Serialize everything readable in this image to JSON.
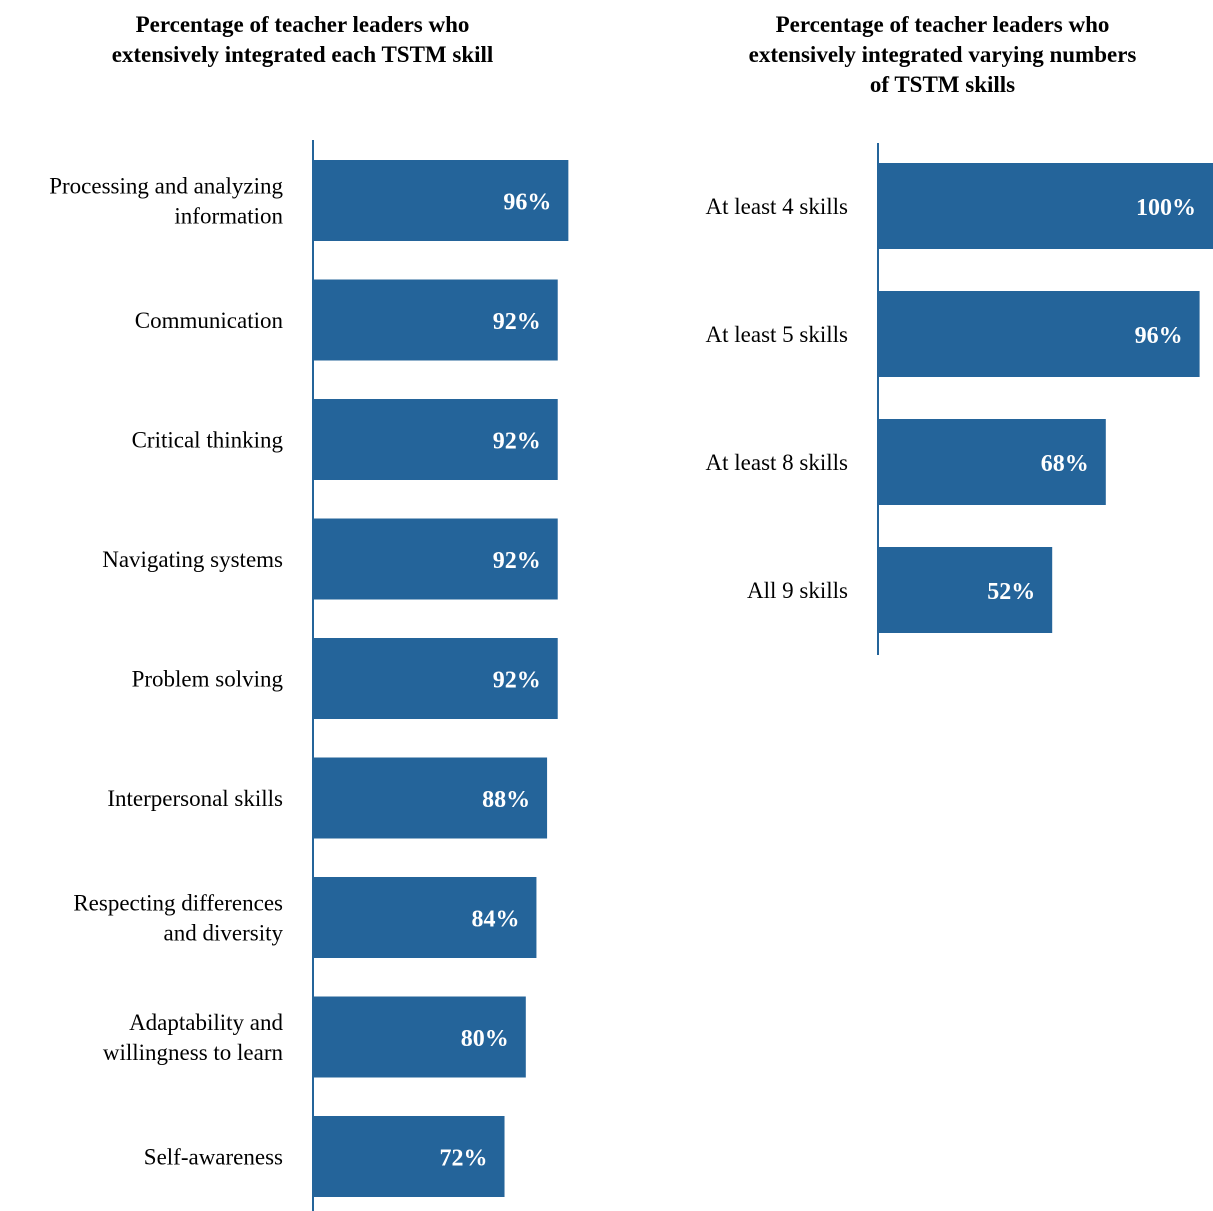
{
  "chart_data": [
    {
      "type": "bar",
      "orientation": "horizontal",
      "title": [
        "Percentage of teacher leaders who",
        "extensively integrated each TSTM skill"
      ],
      "categories": [
        [
          "Processing and analyzing",
          "information"
        ],
        [
          "Communication"
        ],
        [
          "Critical thinking"
        ],
        [
          "Navigating systems"
        ],
        [
          "Problem solving"
        ],
        [
          "Interpersonal skills"
        ],
        [
          "Respecting differences",
          "and diversity"
        ],
        [
          "Adaptability and",
          "willingness to learn"
        ],
        [
          "Self-awareness"
        ]
      ],
      "values": [
        96,
        92,
        92,
        92,
        92,
        88,
        84,
        80,
        72
      ],
      "value_labels": [
        "96%",
        "92%",
        "92%",
        "92%",
        "92%",
        "88%",
        "84%",
        "80%",
        "72%"
      ],
      "xlim": [
        0,
        100
      ],
      "bar_color": "#24649A",
      "grid": false,
      "legend": "none"
    },
    {
      "type": "bar",
      "orientation": "horizontal",
      "title": [
        "Percentage of teacher leaders who",
        "extensively integrated varying numbers",
        "of TSTM skills"
      ],
      "categories": [
        [
          "At least 4 skills"
        ],
        [
          "At least 5 skills"
        ],
        [
          "At least 8 skills"
        ],
        [
          "All 9 skills"
        ]
      ],
      "values": [
        100,
        96,
        68,
        52
      ],
      "value_labels": [
        "100%",
        "96%",
        "68%",
        "52%"
      ],
      "xlim": [
        0,
        100
      ],
      "bar_color": "#24649A",
      "grid": false,
      "legend": "none"
    }
  ]
}
